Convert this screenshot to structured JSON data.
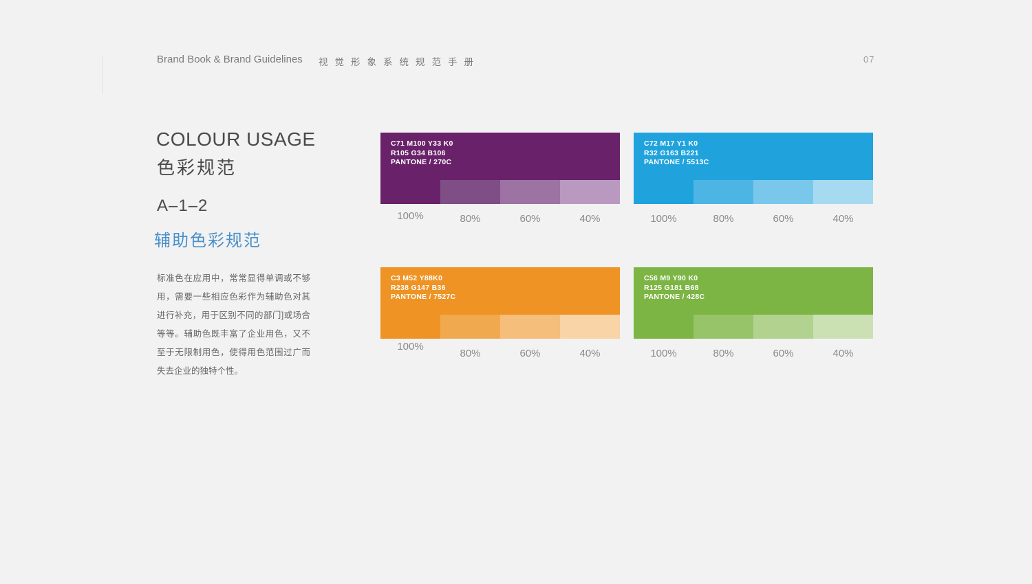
{
  "header": {
    "title_en": "Brand Book & Brand Guidelines",
    "title_zh": "视觉形象系统规范手册",
    "page_number": "07"
  },
  "intro": {
    "heading_en": "COLOUR USAGE",
    "heading_zh": "色彩规范",
    "section_code": "A–1–2",
    "section_title_zh": "辅助色彩规范",
    "accent_color": "#4a90c9",
    "paragraph": "标准色在应用中，常常显得单调或不够用，需要一些相应色彩作为辅助色对其进行补充，用于区别不同的部门]或场合等等。辅助色既丰富了企业用色，又不至于无限制用色，使得用色范围过广而失去企业的独特个性。"
  },
  "tint_labels": [
    "100%",
    "80%",
    "60%",
    "40%"
  ],
  "swatches": [
    {
      "id": "purple",
      "cmyk": "C71 M100 Y33 K0",
      "rgb": "R105 G34 B106",
      "pantone": "PANTONE / 270C",
      "base_hex": "#69226A",
      "tints": [
        "#69226A",
        "#7F4E86",
        "#9C73A2",
        "#BA99C0"
      ]
    },
    {
      "id": "blue",
      "cmyk": "C72 M17 Y1 K0",
      "rgb": "R32 G163 B221",
      "pantone": "PANTONE / 5513C",
      "base_hex": "#20A3DD",
      "tints": [
        "#20A3DD",
        "#4DB5E4",
        "#79C8EB",
        "#A6DAF1"
      ]
    },
    {
      "id": "orange",
      "cmyk": "C3 M52 Y88K0",
      "rgb": "R238 G147 B36",
      "pantone": "PANTONE / 7527C",
      "base_hex": "#EE9324",
      "tints": [
        "#EE9324",
        "#F1A950",
        "#F5BE7B",
        "#F8D4A7"
      ]
    },
    {
      "id": "green",
      "cmyk": "C56 M9 Y90 K0",
      "rgb": "R125 G181 B68",
      "pantone": "PANTONE / 428C",
      "base_hex": "#7DB544",
      "tints": [
        "#7DB544",
        "#97C469",
        "#B1D38F",
        "#CBE1B4"
      ]
    }
  ]
}
